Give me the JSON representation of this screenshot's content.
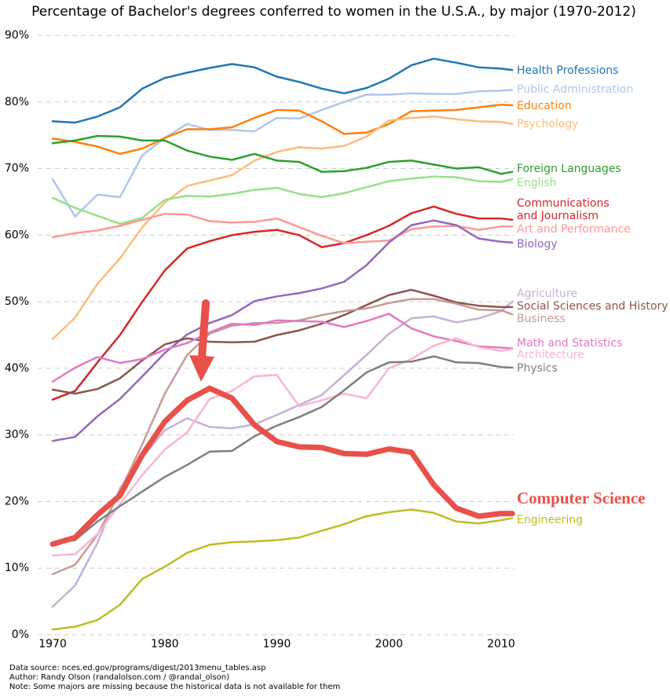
{
  "chart_data": {
    "type": "line",
    "title": "Percentage of Bachelor's degrees conferred to women in the U.S.A., by major (1970-2012)",
    "x": [
      1970,
      1972,
      1974,
      1976,
      1978,
      1980,
      1982,
      1984,
      1986,
      1988,
      1990,
      1992,
      1994,
      1996,
      1998,
      2000,
      2002,
      2004,
      2006,
      2008,
      2010,
      2011
    ],
    "xlim": [
      1968,
      2012
    ],
    "xticks": [
      1970,
      1980,
      1990,
      2000,
      2010
    ],
    "ylim": [
      0,
      90
    ],
    "yticks": [
      {
        "value": 0,
        "label": "0%"
      },
      {
        "value": 10,
        "label": "10%"
      },
      {
        "value": 20,
        "label": "20%"
      },
      {
        "value": 30,
        "label": "30%"
      },
      {
        "value": 40,
        "label": "40%"
      },
      {
        "value": 50,
        "label": "50%"
      },
      {
        "value": 60,
        "label": "60%"
      },
      {
        "value": 70,
        "label": "70%"
      },
      {
        "value": 80,
        "label": "80%"
      },
      {
        "value": 90,
        "label": "90%"
      }
    ],
    "grid": true,
    "series": [
      {
        "name": "Health Professions",
        "color": "#1f77b4",
        "values": [
          77.1,
          76.9,
          77.8,
          79.2,
          82,
          83.6,
          84.4,
          85.1,
          85.7,
          85.2,
          83.8,
          83,
          82,
          81.3,
          82.1,
          83.5,
          85.5,
          86.5,
          85.9,
          85.2,
          85,
          84.8
        ]
      },
      {
        "name": "Public Administration",
        "color": "#aec7e8",
        "values": [
          68.4,
          62.8,
          66.1,
          65.7,
          72,
          74.6,
          76.7,
          75.8,
          75.8,
          75.6,
          77.6,
          77.5,
          78.8,
          80,
          81.1,
          81.1,
          81.3,
          81.2,
          81.2,
          81.6,
          81.7,
          81.8
        ]
      },
      {
        "name": "Education",
        "color": "#ff7f0e",
        "values": [
          74.5,
          74,
          73.3,
          72.2,
          73,
          74.6,
          75.9,
          75.9,
          76.2,
          77.6,
          78.8,
          78.7,
          77.1,
          75.2,
          75.4,
          76.7,
          78.6,
          78.7,
          78.8,
          79.2,
          79.6,
          79.5
        ]
      },
      {
        "name": "Psychology",
        "color": "#ffbb78",
        "values": [
          44.4,
          47.6,
          52.7,
          56.5,
          61.2,
          64.9,
          67.4,
          68.2,
          69,
          71.2,
          72.5,
          73.2,
          73,
          73.4,
          74.8,
          77.2,
          77.6,
          77.8,
          77.4,
          77.1,
          77,
          76.7
        ]
      },
      {
        "name": "Foreign Languages",
        "color": "#2ca02c",
        "values": [
          73.8,
          74.2,
          74.9,
          74.8,
          74.2,
          74.2,
          72.7,
          71.8,
          71.3,
          72.2,
          71.2,
          71,
          69.5,
          69.6,
          70.1,
          71,
          71.2,
          70.6,
          70,
          70.2,
          69.2,
          69.5
        ]
      },
      {
        "name": "English",
        "color": "#98df8a",
        "values": [
          65.6,
          64.1,
          62.9,
          61.7,
          62.6,
          65.3,
          65.9,
          65.8,
          66.2,
          66.8,
          67.1,
          66.2,
          65.7,
          66.3,
          67.2,
          68.1,
          68.5,
          68.8,
          68.7,
          68.1,
          68,
          68.4
        ]
      },
      {
        "name": "Communications\nand Journalism",
        "color": "#d62728",
        "values": [
          35.3,
          36.6,
          40.9,
          45,
          50,
          54.7,
          58,
          59.1,
          60,
          60.5,
          60.8,
          60,
          58.2,
          58.8,
          60,
          61.4,
          63.3,
          64.3,
          63.2,
          62.5,
          62.5,
          62.3
        ]
      },
      {
        "name": "Art and Performance",
        "color": "#ff9896",
        "values": [
          59.7,
          60.3,
          60.7,
          61.4,
          62.3,
          63.2,
          63.1,
          62.1,
          61.9,
          62,
          62.5,
          61.2,
          59.9,
          58.8,
          59,
          59.2,
          60.9,
          61.3,
          61.4,
          60.8,
          61.3,
          61.3
        ]
      },
      {
        "name": "Biology",
        "color": "#9467bd",
        "values": [
          29.1,
          29.7,
          32.8,
          35.4,
          38.8,
          42.3,
          45.1,
          46.8,
          48,
          50.1,
          50.8,
          51.3,
          52,
          53,
          55.5,
          58.9,
          61.5,
          62.2,
          61.5,
          59.5,
          59,
          58.9
        ]
      },
      {
        "name": "Agriculture",
        "color": "#c5b0d5",
        "values": [
          4.2,
          7.4,
          13.8,
          22,
          26.6,
          30.7,
          32.5,
          31.2,
          31,
          31.6,
          33,
          34.5,
          36,
          39,
          42,
          45.2,
          47.5,
          47.8,
          46.9,
          47.5,
          48.6,
          50
        ]
      },
      {
        "name": "Social Sciences and History",
        "color": "#8c564b",
        "values": [
          36.8,
          36.2,
          36.9,
          38.5,
          41.2,
          43.6,
          44.5,
          44,
          43.9,
          44,
          45,
          45.7,
          46.7,
          48,
          49.5,
          51,
          51.8,
          50.9,
          49.9,
          49.4,
          49.2,
          49.2
        ]
      },
      {
        "name": "Business",
        "color": "#c49c94",
        "values": [
          9.1,
          10.5,
          15,
          21.5,
          28.6,
          36.2,
          42,
          45.2,
          46.4,
          46.8,
          46.8,
          47.2,
          48,
          48.6,
          49,
          49.8,
          50.4,
          50.4,
          49.7,
          48.8,
          48.7,
          48.1
        ]
      },
      {
        "name": "Math and Statistics",
        "color": "#e377c2",
        "values": [
          38,
          40.1,
          41.7,
          40.8,
          41.4,
          42.8,
          43.8,
          45.4,
          46.7,
          46.5,
          47.2,
          47.1,
          47,
          46.2,
          47.1,
          48.2,
          46,
          44.8,
          44.1,
          43.3,
          43.1,
          43
        ]
      },
      {
        "name": "Architecture",
        "color": "#f7b6d2",
        "values": [
          11.9,
          12.1,
          15.1,
          19.6,
          24,
          27.8,
          30.4,
          35.4,
          36.6,
          38.8,
          39,
          34.3,
          35.2,
          36.2,
          35.5,
          40,
          41.4,
          43.4,
          44.5,
          43.2,
          42.6,
          42.9
        ]
      },
      {
        "name": "Physics",
        "color": "#7f7f7f",
        "values": [
          13.8,
          14.2,
          17,
          19.3,
          21.5,
          23.7,
          25.5,
          27.5,
          27.6,
          29.8,
          31.4,
          32.7,
          34.2,
          36.7,
          39.4,
          40.9,
          41,
          41.8,
          40.9,
          40.8,
          40.2,
          40.1
        ]
      },
      {
        "name": "Computer Science",
        "color": "#e8504a",
        "linewidth": 7,
        "values": [
          13.6,
          14.6,
          18,
          20.9,
          27,
          32,
          35.2,
          37,
          35.5,
          31.5,
          29,
          28.2,
          28.1,
          27.2,
          27.1,
          27.9,
          27.4,
          22.5,
          19,
          17.8,
          18.2,
          18.2
        ]
      },
      {
        "name": "Engineering",
        "color": "#bcbd22",
        "values": [
          0.8,
          1.2,
          2.2,
          4.5,
          8.4,
          10.2,
          12.3,
          13.5,
          13.9,
          14,
          14.2,
          14.6,
          15.6,
          16.6,
          17.8,
          18.4,
          18.8,
          18.3,
          17,
          16.7,
          17.2,
          17.5
        ]
      }
    ],
    "notes": [
      "Data source: nces.ed.gov/programs/digest/2013menu_tables.asp",
      "Author: Randy Olson (randalolson.com / @randal_olson)",
      "Note: Some majors are missing because the historical data is not available for them"
    ]
  }
}
